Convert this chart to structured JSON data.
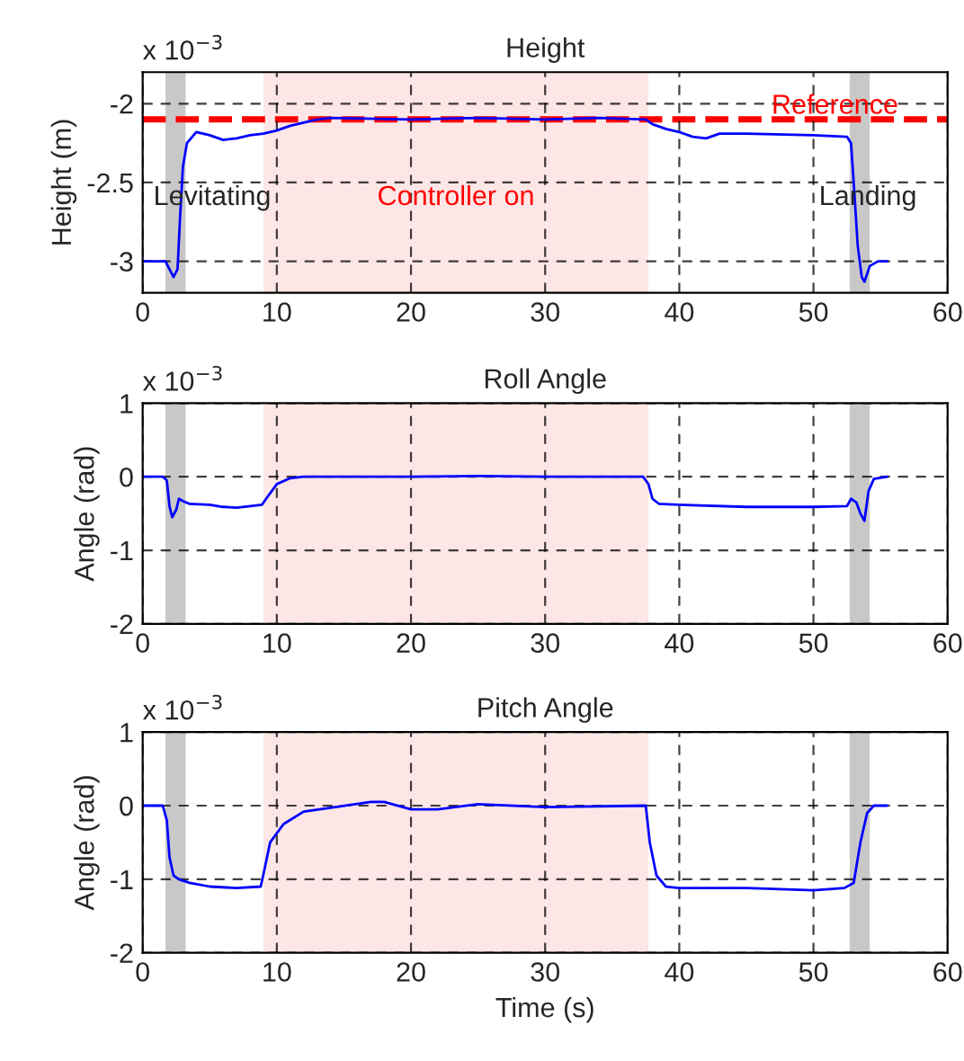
{
  "chart_data": [
    {
      "type": "line",
      "title": "Height",
      "ylabel": "Height (m)",
      "annotations": [
        "x 10$^{−3}$"
      ],
      "xlim": [
        0,
        60
      ],
      "xticks": [
        0,
        10,
        20,
        30,
        40,
        50,
        60
      ],
      "ylim": [
        -3.2,
        -1.8
      ],
      "yticks": [
        -3,
        -2.5,
        -2
      ],
      "grid": true,
      "series": [
        {
          "color": "#0000ff",
          "x": [
            0,
            1.7,
            2.0,
            2.3,
            2.6,
            2.8,
            3.0,
            3.3,
            4,
            5,
            6,
            7,
            8,
            9,
            10,
            11,
            12,
            13,
            14,
            20,
            25,
            30,
            34,
            37.5,
            38,
            39,
            40,
            41,
            42,
            43,
            45,
            50,
            52.5,
            52.8,
            53.0,
            53.3,
            53.6,
            53.8,
            54.2,
            54.8,
            55.5
          ],
          "values": [
            -3.0,
            -3.0,
            -3.05,
            -3.1,
            -3.05,
            -2.7,
            -2.4,
            -2.25,
            -2.18,
            -2.2,
            -2.23,
            -2.22,
            -2.2,
            -2.19,
            -2.17,
            -2.14,
            -2.12,
            -2.1,
            -2.09,
            -2.1,
            -2.09,
            -2.1,
            -2.09,
            -2.1,
            -2.13,
            -2.16,
            -2.18,
            -2.21,
            -2.22,
            -2.19,
            -2.19,
            -2.2,
            -2.21,
            -2.25,
            -2.5,
            -2.9,
            -3.1,
            -3.13,
            -3.03,
            -3.0,
            -3.0
          ]
        }
      ],
      "ref_lines": [
        {
          "axis": "y",
          "value": -2.1,
          "label": "Reference",
          "color": "#ff0000",
          "line_style": "dashed"
        }
      ],
      "bands": [
        {
          "axis": "x",
          "from": 1.7,
          "to": 3.2,
          "label": "Levitating",
          "color": "#c8c8c8"
        },
        {
          "axis": "x",
          "from": 9,
          "to": 37.7,
          "label": "Controller on",
          "color": "#fde6e6"
        },
        {
          "axis": "x",
          "from": 52.7,
          "to": 54.2,
          "label": "Landing",
          "color": "#c8c8c8"
        }
      ]
    },
    {
      "type": "line",
      "title": "Roll Angle",
      "ylabel": "Angle (rad)",
      "annotations": [
        "x 10$^{−3}$"
      ],
      "xlim": [
        0,
        60
      ],
      "xticks": [
        0,
        10,
        20,
        30,
        40,
        50,
        60
      ],
      "ylim": [
        -2,
        1
      ],
      "yticks": [
        -2,
        -1,
        0,
        1
      ],
      "grid": true,
      "series": [
        {
          "color": "#0000ff",
          "x": [
            0,
            1.5,
            1.8,
            2.0,
            2.2,
            2.5,
            2.7,
            3.0,
            3.5,
            5,
            6,
            7,
            8.9,
            9.2,
            10,
            11,
            12,
            20,
            25,
            30,
            37.3,
            37.7,
            38,
            38.5,
            40,
            45,
            50,
            52.5,
            52.8,
            53.2,
            53.5,
            53.8,
            54.1,
            54.5,
            55.5
          ],
          "values": [
            0,
            0,
            -0.05,
            -0.4,
            -0.55,
            -0.45,
            -0.3,
            -0.33,
            -0.37,
            -0.38,
            -0.41,
            -0.42,
            -0.38,
            -0.3,
            -0.1,
            -0.02,
            0,
            0,
            0.01,
            0,
            0,
            -0.1,
            -0.3,
            -0.37,
            -0.38,
            -0.41,
            -0.41,
            -0.4,
            -0.3,
            -0.35,
            -0.5,
            -0.6,
            -0.2,
            -0.03,
            0
          ]
        }
      ],
      "bands": [
        {
          "axis": "x",
          "from": 1.7,
          "to": 3.2,
          "color": "#c8c8c8"
        },
        {
          "axis": "x",
          "from": 9,
          "to": 37.7,
          "color": "#fde6e6"
        },
        {
          "axis": "x",
          "from": 52.7,
          "to": 54.2,
          "color": "#c8c8c8"
        }
      ]
    },
    {
      "type": "line",
      "title": "Pitch Angle",
      "xlabel": "Time (s)",
      "ylabel": "Angle (rad)",
      "annotations": [
        "x 10$^{−3}$"
      ],
      "xlim": [
        0,
        60
      ],
      "xticks": [
        0,
        10,
        20,
        30,
        40,
        50,
        60
      ],
      "ylim": [
        -2,
        1
      ],
      "yticks": [
        -2,
        -1,
        0,
        1
      ],
      "grid": true,
      "series": [
        {
          "color": "#0000ff",
          "x": [
            0,
            1.5,
            1.8,
            2.0,
            2.3,
            2.7,
            3.5,
            5,
            7,
            8.8,
            9.1,
            9.5,
            10.5,
            12,
            14,
            17,
            18,
            20,
            22,
            25,
            30,
            37.5,
            37.8,
            38.3,
            39,
            40,
            45,
            50,
            52.3,
            53,
            53.5,
            54,
            54.5,
            55.5
          ],
          "values": [
            0,
            0,
            -0.2,
            -0.7,
            -0.95,
            -1.0,
            -1.05,
            -1.1,
            -1.12,
            -1.1,
            -0.85,
            -0.5,
            -0.25,
            -0.08,
            -0.03,
            0.05,
            0.05,
            -0.05,
            -0.05,
            0.02,
            -0.02,
            0,
            -0.5,
            -0.95,
            -1.1,
            -1.12,
            -1.12,
            -1.15,
            -1.12,
            -1.05,
            -0.5,
            -0.1,
            0,
            0
          ]
        }
      ],
      "bands": [
        {
          "axis": "x",
          "from": 1.7,
          "to": 3.2,
          "color": "#c8c8c8"
        },
        {
          "axis": "x",
          "from": 9,
          "to": 37.7,
          "color": "#fde6e6"
        },
        {
          "axis": "x",
          "from": 52.7,
          "to": 54.2,
          "color": "#c8c8c8"
        }
      ]
    }
  ]
}
